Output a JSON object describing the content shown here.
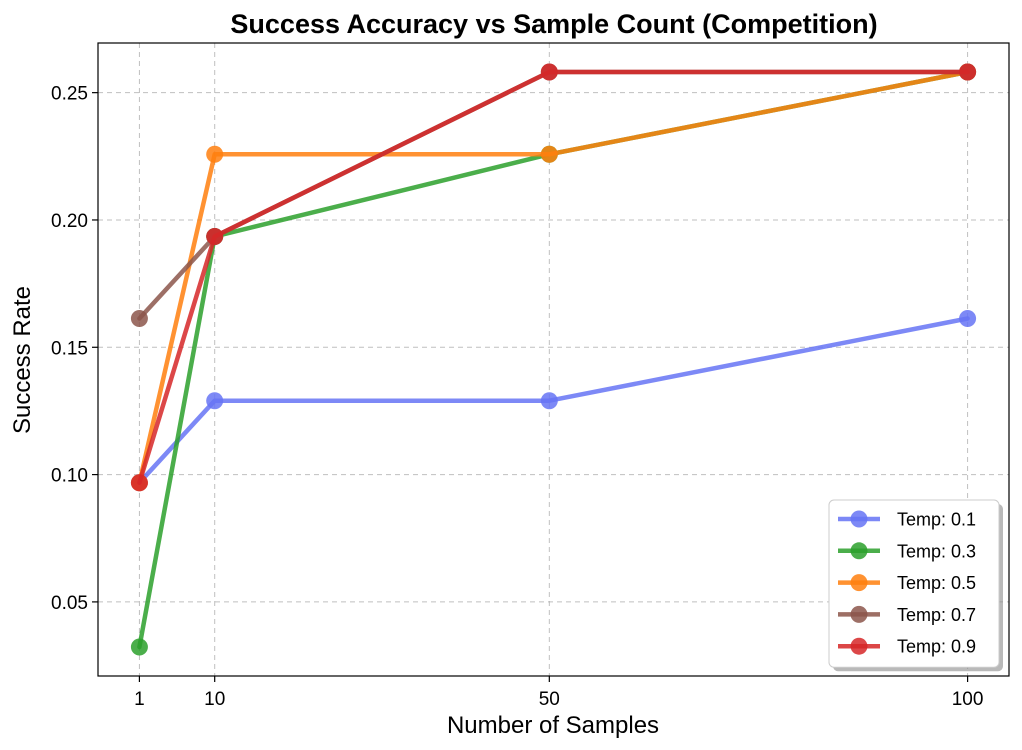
{
  "chart_data": {
    "type": "line",
    "title": "Success Accuracy vs Sample Count (Competition)",
    "xlabel": "Number of Samples",
    "ylabel": "Success Rate",
    "x": [
      1,
      10,
      50,
      100
    ],
    "xticks": [
      1,
      10,
      50,
      100
    ],
    "xlim": [
      -3.95,
      104.95
    ],
    "ylim": [
      0.0209,
      0.2695
    ],
    "yticks": [
      0.05,
      0.1,
      0.15,
      0.2,
      0.25
    ],
    "ytick_labels": [
      "0.05",
      "0.10",
      "0.15",
      "0.20",
      "0.25"
    ],
    "grid": true,
    "legend_position": "bottom-right",
    "series": [
      {
        "name": "Temp: 0.1",
        "color": "#6674f5",
        "values": [
          0.0968,
          0.129,
          0.129,
          0.1613
        ]
      },
      {
        "name": "Temp: 0.3",
        "color": "#2ca02c",
        "values": [
          0.0323,
          0.1935,
          0.2258,
          0.2581
        ]
      },
      {
        "name": "Temp: 0.5",
        "color": "#ff7f0e",
        "values": [
          0.0968,
          0.2258,
          0.2258,
          0.2581
        ]
      },
      {
        "name": "Temp: 0.7",
        "color": "#8c564b",
        "values": [
          0.1613,
          0.1935,
          0.2581,
          0.2581
        ]
      },
      {
        "name": "Temp: 0.9",
        "color": "#d62728",
        "values": [
          0.0968,
          0.1935,
          0.2581,
          0.2581
        ]
      }
    ]
  }
}
